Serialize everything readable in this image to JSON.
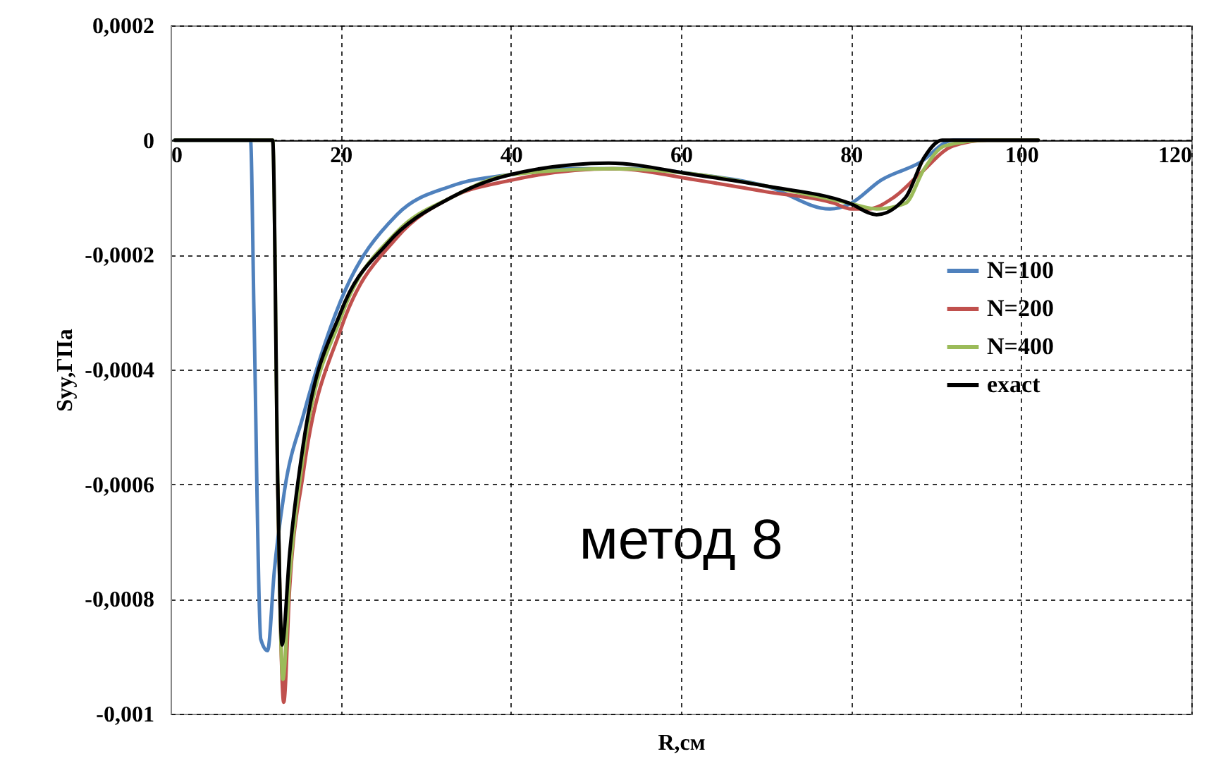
{
  "chart_data": {
    "type": "line",
    "xlabel": "R,см",
    "ylabel": "Syy,ГПа",
    "annotations": [
      "метод 8"
    ],
    "xlim": [
      0,
      120
    ],
    "xticks": [
      0,
      20,
      40,
      60,
      80,
      100,
      120
    ],
    "ylim": [
      -0.001,
      0.0002
    ],
    "yticks": [
      {
        "value": 0.0002,
        "label": "0,0002"
      },
      {
        "value": 0,
        "label": "0"
      },
      {
        "value": -0.0002,
        "label": "-0,0002"
      },
      {
        "value": -0.0004,
        "label": "-0,0004"
      },
      {
        "value": -0.0006,
        "label": "-0,0006"
      },
      {
        "value": -0.0008,
        "label": "-0,0008"
      },
      {
        "value": -0.001,
        "label": "-0,001"
      }
    ],
    "grid": true,
    "legend": "right",
    "line_style": "solid",
    "series": [
      {
        "name": "N=100",
        "color": "#4f81bd",
        "x": [
          0.5,
          9.4,
          9.8,
          10.6,
          11.4,
          12.2,
          13.4,
          15.6,
          20,
          26.6,
          33,
          40,
          47,
          55,
          62,
          70,
          77.5,
          80,
          83.5,
          88,
          92,
          96,
          102
        ],
        "values": [
          0,
          0,
          -0.0003,
          -0.00087,
          -0.00089,
          -0.00075,
          -0.00061,
          -0.00048,
          -0.00028,
          -0.00013,
          -8e-05,
          -6e-05,
          -5e-05,
          -5e-05,
          -6e-05,
          -8e-05,
          -0.00012,
          -0.00011,
          -7e-05,
          -4e-05,
          0,
          0,
          0
        ]
      },
      {
        "name": "N=200",
        "color": "#c0504d",
        "x": [
          12.6,
          13.3,
          14,
          15.6,
          20,
          26.6,
          33,
          40,
          52,
          62,
          70,
          78,
          80,
          82,
          85,
          88,
          92,
          96,
          102
        ],
        "values": [
          -0.0006,
          -0.00098,
          -0.00078,
          -0.00058,
          -0.00033,
          -0.00017,
          -0.0001,
          -7e-05,
          -5e-05,
          -7e-05,
          -9e-05,
          -0.00011,
          -0.00012,
          -0.00012,
          -0.0001,
          -6e-05,
          -1e-05,
          0,
          0
        ]
      },
      {
        "name": "N=400",
        "color": "#9bbb59",
        "x": [
          0.5,
          12,
          12.6,
          13.2,
          14,
          15.6,
          20,
          26.6,
          33,
          40,
          52,
          62,
          70,
          79.8,
          83,
          86.4,
          88.6,
          91,
          96,
          102
        ],
        "values": [
          0,
          0,
          -0.0006,
          -0.00094,
          -0.00076,
          -0.00055,
          -0.00031,
          -0.00016,
          -0.0001,
          -6e-05,
          -5e-05,
          -6e-05,
          -8e-05,
          -0.00011,
          -0.00012,
          -0.00011,
          -5e-05,
          -1e-05,
          0,
          0
        ]
      },
      {
        "name": "exact",
        "color": "#000000",
        "x": [
          0.5,
          12,
          12.6,
          13.1,
          14,
          15.6,
          20,
          25.5,
          33,
          40,
          51.5,
          61.5,
          70,
          79.8,
          83,
          86.4,
          88.6,
          90.7,
          96,
          102
        ],
        "values": [
          0,
          0,
          -0.0006,
          -0.00088,
          -0.00072,
          -0.00053,
          -0.0003,
          -0.00018,
          -0.0001,
          -6e-05,
          -4e-05,
          -6e-05,
          -8e-05,
          -0.00011,
          -0.00013,
          -0.0001,
          -3e-05,
          0,
          0,
          0
        ]
      }
    ]
  }
}
